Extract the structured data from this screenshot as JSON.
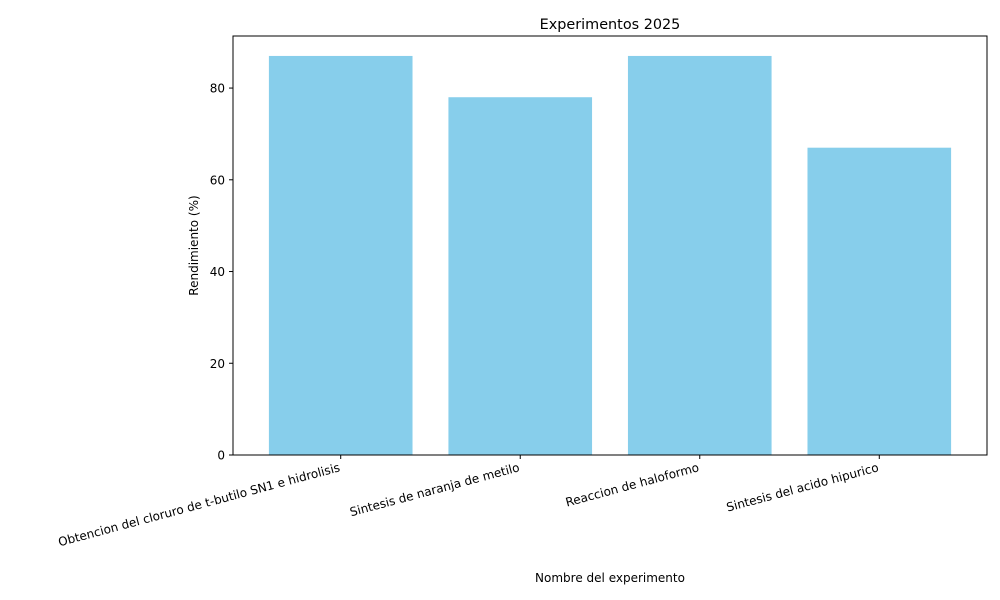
{
  "chart_data": {
    "type": "bar",
    "title": "Experimentos 2025",
    "xlabel": "Nombre del experimento",
    "ylabel": "Rendimiento (%)",
    "categories": [
      "Obtencion del cloruro de t-butilo SN1 e hidrolisis",
      "Sintesis de naranja de metilo",
      "Reaccion de haloformo",
      "Sintesis del acido hipurico"
    ],
    "values": [
      87,
      78,
      87,
      67
    ],
    "ylim": [
      0,
      91.35
    ],
    "yticks": [
      "0",
      "20",
      "40",
      "60",
      "80"
    ],
    "grid": false,
    "bar_color": "#87CEEB"
  }
}
